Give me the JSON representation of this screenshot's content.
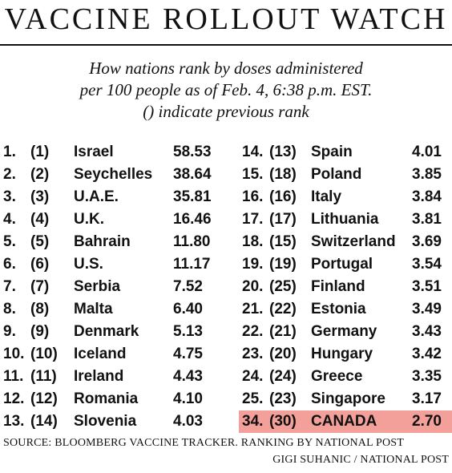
{
  "title": "VACCINE ROLLOUT WATCH",
  "subtitle": [
    "How nations rank by doses administered",
    "per 100 people as of Feb. 4, 6:38 p.m. EST.",
    "() indicate previous rank"
  ],
  "highlight_color": "#f4a09a",
  "left_rows": [
    {
      "rank": "1.",
      "prev": "(1)",
      "country": "Israel",
      "value": "58.53"
    },
    {
      "rank": "2.",
      "prev": "(2)",
      "country": "Seychelles",
      "value": "38.64"
    },
    {
      "rank": "3.",
      "prev": "(3)",
      "country": "U.A.E.",
      "value": "35.81"
    },
    {
      "rank": "4.",
      "prev": "(4)",
      "country": "U.K.",
      "value": "16.46"
    },
    {
      "rank": "5.",
      "prev": "(5)",
      "country": "Bahrain",
      "value": "11.80"
    },
    {
      "rank": "6.",
      "prev": "(6)",
      "country": "U.S.",
      "value": "11.17"
    },
    {
      "rank": "7.",
      "prev": "(7)",
      "country": "Serbia",
      "value": "7.52"
    },
    {
      "rank": "8.",
      "prev": "(8)",
      "country": "Malta",
      "value": "6.40"
    },
    {
      "rank": "9.",
      "prev": "(9)",
      "country": "Denmark",
      "value": "5.13"
    },
    {
      "rank": "10.",
      "prev": "(10)",
      "country": "Iceland",
      "value": "4.75"
    },
    {
      "rank": "11.",
      "prev": "(11)",
      "country": "Ireland",
      "value": "4.43"
    },
    {
      "rank": "12.",
      "prev": "(12)",
      "country": "Romania",
      "value": "4.10"
    },
    {
      "rank": "13.",
      "prev": "(14)",
      "country": "Slovenia",
      "value": "4.03"
    }
  ],
  "right_rows": [
    {
      "rank": "14.",
      "prev": "(13)",
      "country": "Spain",
      "value": "4.01"
    },
    {
      "rank": "15.",
      "prev": "(18)",
      "country": "Poland",
      "value": "3.85"
    },
    {
      "rank": "16.",
      "prev": "(16)",
      "country": "Italy",
      "value": "3.84"
    },
    {
      "rank": "17.",
      "prev": "(17)",
      "country": "Lithuania",
      "value": "3.81"
    },
    {
      "rank": "18.",
      "prev": "(15)",
      "country": "Switzerland",
      "value": "3.69"
    },
    {
      "rank": "19.",
      "prev": "(19)",
      "country": "Portugal",
      "value": "3.54"
    },
    {
      "rank": "20.",
      "prev": "(25)",
      "country": "Finland",
      "value": "3.51"
    },
    {
      "rank": "21.",
      "prev": "(22)",
      "country": "Estonia",
      "value": "3.49"
    },
    {
      "rank": "22.",
      "prev": "(21)",
      "country": "Germany",
      "value": "3.43"
    },
    {
      "rank": "23.",
      "prev": "(20)",
      "country": "Hungary",
      "value": "3.42"
    },
    {
      "rank": "24.",
      "prev": "(24)",
      "country": "Greece",
      "value": "3.35"
    },
    {
      "rank": "25.",
      "prev": "(23)",
      "country": "Singapore",
      "value": "3.17"
    },
    {
      "rank": "34.",
      "prev": "(30)",
      "country": "CANADA",
      "value": "2.70",
      "highlight": true
    }
  ],
  "source": "SOURCE: BLOOMBERG VACCINE TRACKER. RANKING BY NATIONAL POST",
  "credit": "GIGI SUHANIC / NATIONAL POST"
}
